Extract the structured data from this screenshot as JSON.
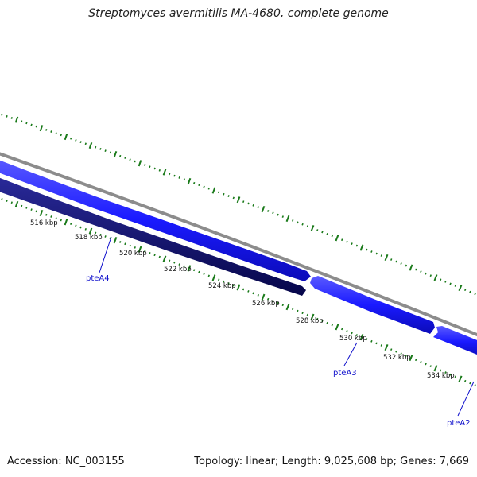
{
  "header": {
    "title": "Streptomyces avermitilis MA-4680, complete genome"
  },
  "footer": {
    "accession": "Accession: NC_003155",
    "summary": "Topology: linear; Length: 9,025,608 bp; Genes: 7,669"
  },
  "map": {
    "scale_labels": [
      "516 kbp",
      "518 kbp",
      "520 kbp",
      "522 kbp",
      "524 kbp",
      "526 kbp",
      "528 kbp",
      "530 kbp",
      "532 kbp",
      "534 kbp"
    ],
    "genes": [
      {
        "name": "pteA4"
      },
      {
        "name": "pteA3"
      },
      {
        "name": "pteA2"
      }
    ],
    "colors": {
      "backbone": "#8c8c8c",
      "forward_gene": "#1a1aff",
      "reverse_gene": "#0a0a6e",
      "ticks": "#1a7a1a",
      "gene_label": "#1010cc"
    }
  }
}
